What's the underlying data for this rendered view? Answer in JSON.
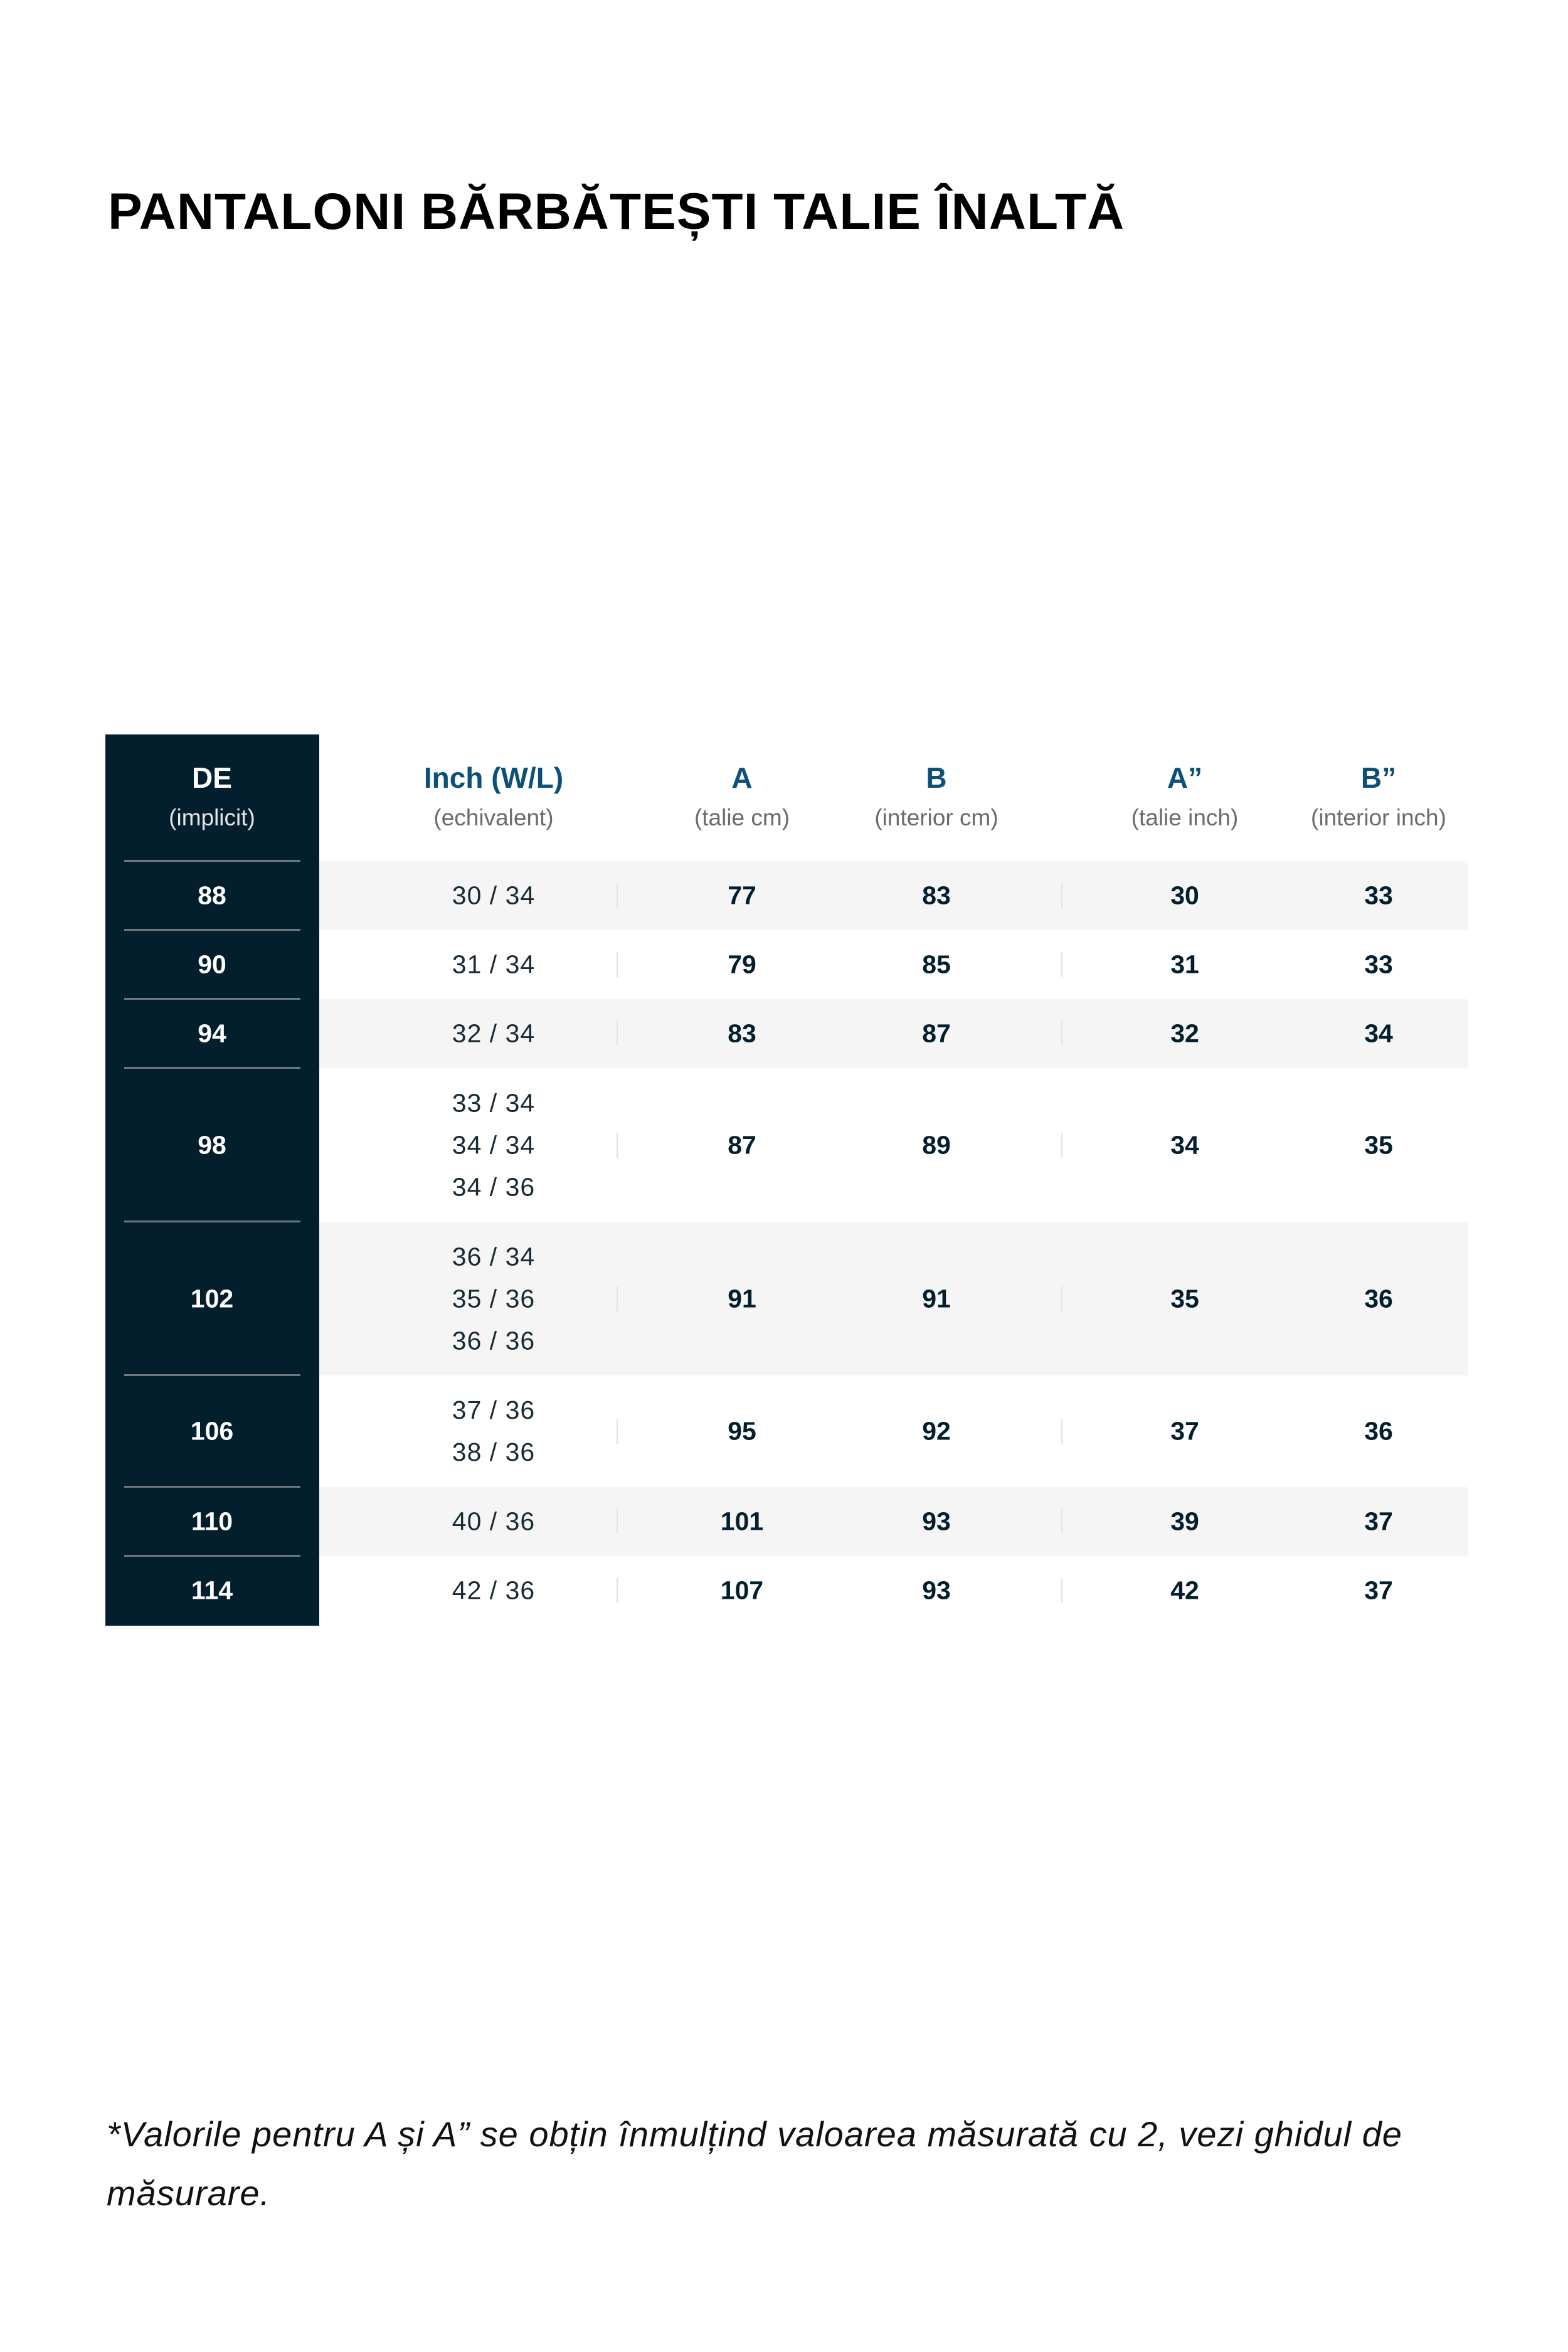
{
  "title": {
    "regular": "PANTALONI BĂRBĂTEȘTI",
    "bold": "TALIE ÎNALTĂ"
  },
  "colors": {
    "dark_column": "#031f2d",
    "header_accent": "#0a5078",
    "alt_row": "#f5f5f5"
  },
  "table": {
    "headers": [
      {
        "label": "DE",
        "sub": "(implicit)"
      },
      {
        "label": "Inch (W/L)",
        "sub": "(echivalent)"
      },
      {
        "label": "A",
        "sub": "(talie cm)"
      },
      {
        "label": "B",
        "sub": "(interior cm)"
      },
      {
        "label": "A”",
        "sub": "(talie inch)"
      },
      {
        "label": "B”",
        "sub": "(interior inch)"
      }
    ],
    "rows": [
      {
        "de": "88",
        "inch": [
          "30 / 34"
        ],
        "a": "77",
        "b": "83",
        "a_in": "30",
        "b_in": "33"
      },
      {
        "de": "90",
        "inch": [
          "31 / 34"
        ],
        "a": "79",
        "b": "85",
        "a_in": "31",
        "b_in": "33"
      },
      {
        "de": "94",
        "inch": [
          "32 / 34"
        ],
        "a": "83",
        "b": "87",
        "a_in": "32",
        "b_in": "34"
      },
      {
        "de": "98",
        "inch": [
          "33 / 34",
          "34 / 34",
          "34 / 36"
        ],
        "a": "87",
        "b": "89",
        "a_in": "34",
        "b_in": "35"
      },
      {
        "de": "102",
        "inch": [
          "36 / 34",
          "35 / 36",
          "36 / 36"
        ],
        "a": "91",
        "b": "91",
        "a_in": "35",
        "b_in": "36"
      },
      {
        "de": "106",
        "inch": [
          "37 / 36",
          "38 / 36"
        ],
        "a": "95",
        "b": "92",
        "a_in": "37",
        "b_in": "36"
      },
      {
        "de": "110",
        "inch": [
          "40 / 36"
        ],
        "a": "101",
        "b": "93",
        "a_in": "39",
        "b_in": "37"
      },
      {
        "de": "114",
        "inch": [
          "42 / 36"
        ],
        "a": "107",
        "b": "93",
        "a_in": "42",
        "b_in": "37"
      }
    ]
  },
  "footnote": "*Valorile pentru A și A” se obțin înmulțind valoarea măsurată cu 2, vezi ghidul de măsurare."
}
